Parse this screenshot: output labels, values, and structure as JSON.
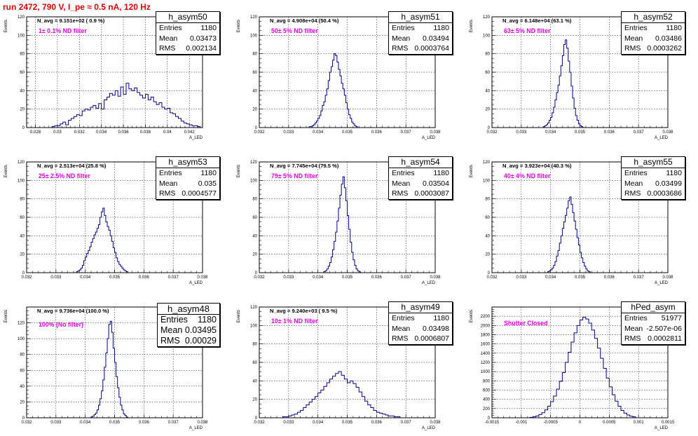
{
  "header": {
    "title": "run 2472,   790 V, I_pe ≈ 0.5 nA, 120 Hz"
  },
  "chart_data": [
    {
      "type": "histogram",
      "name": "h_asym50",
      "n_avg_label": "N_avg = 9.151e+02 ( 0.9 %)",
      "filter_label": "1± 0.1% ND filter",
      "stats": {
        "entries_label": "Entries",
        "entries": "1180",
        "mean_label": "Mean",
        "mean": "0.03473",
        "rms_label": "RMS",
        "rms": "0.002134"
      },
      "xlabel": "A_LED",
      "ylabel": "Events",
      "xlim": [
        0.0272,
        0.0432
      ],
      "ylim": [
        0,
        120
      ],
      "xticks": [
        0.028,
        0.03,
        0.032,
        0.034,
        0.036,
        0.038,
        0.04,
        0.042
      ],
      "xtick_labels": [
        "0.028",
        "0.03",
        "0.032",
        "0.034",
        "0.036",
        "0.038",
        "0.04",
        "0.042"
      ],
      "yticks": [
        0,
        20,
        40,
        60,
        80,
        100,
        120
      ],
      "ytick_labels": [
        "0",
        "20",
        "40",
        "60",
        "80",
        "100",
        "120"
      ],
      "bins": {
        "start": 0.0295,
        "width": 0.00025,
        "counts": [
          1,
          2,
          2,
          4,
          6,
          3,
          8,
          10,
          12,
          14,
          13,
          18,
          20,
          19,
          22,
          24,
          21,
          26,
          20,
          30,
          33,
          37,
          35,
          40,
          34,
          44,
          36,
          48,
          42,
          40,
          43,
          38,
          35,
          32,
          36,
          30,
          33,
          28,
          25,
          27,
          22,
          20,
          21,
          16,
          15,
          12,
          10,
          7,
          5,
          4,
          3,
          2,
          2,
          1
        ]
      }
    },
    {
      "type": "histogram",
      "name": "h_asym51",
      "n_avg_label": "N_avg = 4.908e+04 (50.4 %)",
      "filter_label": "50± 5% ND filter",
      "stats": {
        "entries_label": "Entries",
        "entries": "1180",
        "mean_label": "Mean",
        "mean": "0.03494",
        "rms_label": "RMS",
        "rms": "0.0003764"
      },
      "xlabel": "A_LED",
      "ylabel": "Events",
      "xlim": [
        0.032,
        0.038
      ],
      "ylim": [
        0,
        120
      ],
      "xticks": [
        0.032,
        0.033,
        0.034,
        0.035,
        0.036,
        0.037,
        0.038
      ],
      "xtick_labels": [
        "0.032",
        "0.033",
        "0.034",
        "0.035",
        "0.036",
        "0.037",
        "0.038"
      ],
      "yticks": [
        0,
        20,
        40,
        60,
        80,
        100,
        120
      ],
      "ytick_labels": [
        "0",
        "20",
        "40",
        "60",
        "80",
        "100",
        "120"
      ],
      "bins": {
        "start": 0.0337,
        "width": 5e-05,
        "counts": [
          1,
          1,
          2,
          3,
          5,
          7,
          10,
          13,
          18,
          24,
          28,
          35,
          42,
          51,
          60,
          66,
          73,
          80,
          78,
          71,
          63,
          56,
          48,
          42,
          35,
          27,
          20,
          14,
          10,
          6,
          4,
          2,
          1
        ]
      }
    },
    {
      "type": "histogram",
      "name": "h_asym52",
      "n_avg_label": "N_avg = 6.148e+04 (63.1 %)",
      "filter_label": "63± 5% ND filter",
      "stats": {
        "entries_label": "Entries",
        "entries": "1180",
        "mean_label": "Mean",
        "mean": "0.03486",
        "rms_label": "RMS",
        "rms": "0.0003262"
      },
      "xlabel": "A_LED",
      "ylabel": "Events",
      "xlim": [
        0.032,
        0.038
      ],
      "ylim": [
        0,
        120
      ],
      "xticks": [
        0.032,
        0.033,
        0.034,
        0.035,
        0.036,
        0.037,
        0.038
      ],
      "xtick_labels": [
        "0.032",
        "0.033",
        "0.034",
        "0.035",
        "0.036",
        "0.037",
        "0.038"
      ],
      "yticks": [
        0,
        20,
        40,
        60,
        80,
        100,
        120
      ],
      "ytick_labels": [
        "0",
        "20",
        "40",
        "60",
        "80",
        "100",
        "120"
      ],
      "bins": {
        "start": 0.03375,
        "width": 5e-05,
        "counts": [
          1,
          2,
          3,
          5,
          8,
          11,
          16,
          22,
          30,
          38,
          46,
          56,
          67,
          78,
          90,
          95,
          86,
          72,
          60,
          45,
          32,
          21,
          13,
          8,
          4,
          2,
          1
        ]
      }
    },
    {
      "type": "histogram",
      "name": "h_asym53",
      "n_avg_label": "N_avg = 2.513e+04 (25.8 %)",
      "filter_label": "25± 2.5% ND filter",
      "stats": {
        "entries_label": "Entries",
        "entries": "1180",
        "mean_label": "Mean",
        "mean": "0.035",
        "rms_label": "RMS",
        "rms": "0.0004577"
      },
      "xlabel": "A_LED",
      "ylabel": "Events",
      "xlim": [
        0.032,
        0.038
      ],
      "ylim": [
        0,
        120
      ],
      "xticks": [
        0.032,
        0.033,
        0.034,
        0.035,
        0.036,
        0.037,
        0.038
      ],
      "xtick_labels": [
        "0.032",
        "0.033",
        "0.034",
        "0.035",
        "0.036",
        "0.037",
        "0.038"
      ],
      "yticks": [
        0,
        20,
        40,
        60,
        80,
        100,
        120
      ],
      "ytick_labels": [
        "0",
        "20",
        "40",
        "60",
        "80",
        "100",
        "120"
      ],
      "bins": {
        "start": 0.0337,
        "width": 5e-05,
        "counts": [
          1,
          2,
          3,
          5,
          8,
          13,
          17,
          21,
          24,
          28,
          33,
          37,
          41,
          44,
          48,
          52,
          60,
          66,
          70,
          62,
          55,
          50,
          46,
          40,
          34,
          27,
          22,
          16,
          12,
          9,
          7,
          5,
          3,
          2,
          1
        ]
      }
    },
    {
      "type": "histogram",
      "name": "h_asym54",
      "n_avg_label": "N_avg = 7.745e+04 (79.5 %)",
      "filter_label": "79± 5% ND filter",
      "stats": {
        "entries_label": "Entries",
        "entries": "1180",
        "mean_label": "Mean",
        "mean": "0.03504",
        "rms_label": "RMS",
        "rms": "0.0003087"
      },
      "xlabel": "A_LED",
      "ylabel": "Events",
      "xlim": [
        0.032,
        0.038
      ],
      "ylim": [
        0,
        120
      ],
      "xticks": [
        0.032,
        0.033,
        0.034,
        0.035,
        0.036,
        0.037,
        0.038
      ],
      "xtick_labels": [
        "0.032",
        "0.033",
        "0.034",
        "0.035",
        "0.036",
        "0.037",
        "0.038"
      ],
      "yticks": [
        0,
        20,
        40,
        60,
        80,
        100,
        120
      ],
      "ytick_labels": [
        "0",
        "20",
        "40",
        "60",
        "80",
        "100",
        "120"
      ],
      "bins": {
        "start": 0.0342,
        "width": 5e-05,
        "counts": [
          1,
          2,
          4,
          7,
          11,
          17,
          25,
          34,
          44,
          56,
          70,
          84,
          96,
          104,
          92,
          78,
          62,
          47,
          33,
          22,
          14,
          8,
          4,
          2,
          1
        ]
      }
    },
    {
      "type": "histogram",
      "name": "h_asym55",
      "n_avg_label": "N_avg = 3.923e+04 (40.3 %)",
      "filter_label": "40± 4% ND filter",
      "stats": {
        "entries_label": "Entries",
        "entries": "1180",
        "mean_label": "Mean",
        "mean": "0.03499",
        "rms_label": "RMS",
        "rms": "0.0003686"
      },
      "xlabel": "A_LED",
      "ylabel": "Events",
      "xlim": [
        0.032,
        0.038
      ],
      "ylim": [
        0,
        120
      ],
      "xticks": [
        0.032,
        0.033,
        0.034,
        0.035,
        0.036,
        0.037,
        0.038
      ],
      "xtick_labels": [
        "0.032",
        "0.033",
        "0.034",
        "0.035",
        "0.036",
        "0.037",
        "0.038"
      ],
      "yticks": [
        0,
        20,
        40,
        60,
        80,
        100,
        120
      ],
      "ytick_labels": [
        "0",
        "20",
        "40",
        "60",
        "80",
        "100",
        "120"
      ],
      "bins": {
        "start": 0.0339,
        "width": 5e-05,
        "counts": [
          1,
          2,
          3,
          5,
          8,
          12,
          18,
          24,
          32,
          40,
          48,
          55,
          62,
          70,
          78,
          82,
          74,
          65,
          56,
          47,
          38,
          30,
          22,
          16,
          11,
          7,
          4,
          2,
          1
        ]
      }
    },
    {
      "type": "histogram",
      "name": "h_asym48",
      "n_avg_label": "N_avg = 9.736e+04 (100.0 %)",
      "filter_label": "100% (No filter)",
      "stats": {
        "entries_label": "Entries",
        "entries": "1180",
        "mean_label": "Mean",
        "mean": "0.03495",
        "rms_label": "RMS",
        "rms": "0.00029"
      },
      "xlabel": "A_LED",
      "ylabel": "Events",
      "xlim": [
        0.032,
        0.038
      ],
      "ylim": [
        0,
        140
      ],
      "xticks": [
        0.032,
        0.033,
        0.034,
        0.035,
        0.036,
        0.037,
        0.038
      ],
      "xtick_labels": [
        "0.032",
        "0.033",
        "0.034",
        "0.035",
        "0.036",
        "0.037",
        "0.038"
      ],
      "yticks": [
        0,
        20,
        40,
        60,
        80,
        100,
        120
      ],
      "ytick_labels": [
        "0",
        "20",
        "40",
        "60",
        "80",
        "100",
        "120"
      ],
      "bins": {
        "start": 0.0342,
        "width": 5e-05,
        "counts": [
          1,
          2,
          4,
          6,
          10,
          16,
          24,
          34,
          48,
          64,
          82,
          100,
          118,
          122,
          108,
          88,
          70,
          52,
          38,
          26,
          16,
          10,
          5,
          3,
          1
        ]
      }
    },
    {
      "type": "histogram",
      "name": "h_asym49",
      "n_avg_label": "N_avg = 9.240e+03 ( 9.5 %)",
      "filter_label": "10± 1% ND filter",
      "stats": {
        "entries_label": "Entries",
        "entries": "1180",
        "mean_label": "Mean",
        "mean": "0.03498",
        "rms_label": "RMS",
        "rms": "0.0006807"
      },
      "xlabel": "A_LED",
      "ylabel": "Events",
      "xlim": [
        0.032,
        0.038
      ],
      "ylim": [
        0,
        120
      ],
      "xticks": [
        0.032,
        0.033,
        0.034,
        0.035,
        0.036,
        0.037,
        0.038
      ],
      "xtick_labels": [
        "0.032",
        "0.033",
        "0.034",
        "0.035",
        "0.036",
        "0.037",
        "0.038"
      ],
      "yticks": [
        0,
        20,
        40,
        60,
        80,
        100,
        120
      ],
      "ytick_labels": [
        "0",
        "20",
        "40",
        "60",
        "80",
        "100",
        "120"
      ],
      "bins": {
        "start": 0.0328,
        "width": 0.0001,
        "counts": [
          1,
          1,
          2,
          3,
          4,
          6,
          8,
          11,
          14,
          17,
          20,
          23,
          27,
          30,
          34,
          38,
          42,
          45,
          48,
          50,
          46,
          42,
          38,
          40,
          37,
          33,
          28,
          23,
          18,
          14,
          11,
          8,
          6,
          5,
          4,
          3,
          2,
          2,
          1,
          1
        ]
      }
    },
    {
      "type": "histogram",
      "name": "hPed_asym",
      "n_avg_label": "",
      "filter_label": "Shutter Closed",
      "stats": {
        "entries_label": "Entries",
        "entries": "51977",
        "mean_label": "Mean",
        "mean": "-2.507e-06",
        "rms_label": "RMS",
        "rms": "0.0002811"
      },
      "xlabel": "A_LED",
      "ylabel": "Events",
      "xlim": [
        -0.0015,
        0.0015
      ],
      "ylim": [
        0,
        2400
      ],
      "xticks": [
        -0.0015,
        -0.001,
        -0.0005,
        0,
        0.0005,
        0.001,
        0.0015
      ],
      "xtick_labels": [
        "-0.0015",
        "-0.001",
        "-0.0005",
        "0",
        "0.0005",
        "0.001",
        "0.0015"
      ],
      "yticks": [
        0,
        200,
        400,
        600,
        800,
        1000,
        1200,
        1400,
        1600,
        1800,
        2000,
        2200
      ],
      "ytick_labels": [
        "0",
        "200",
        "400",
        "600",
        "800",
        "1000",
        "1200",
        "1400",
        "1600",
        "1800",
        "2000",
        "2200"
      ],
      "bins": {
        "start": -0.00085,
        "width": 5e-05,
        "counts": [
          10,
          20,
          40,
          70,
          110,
          170,
          250,
          350,
          470,
          620,
          790,
          980,
          1200,
          1420,
          1640,
          1840,
          2000,
          2120,
          2180,
          2140,
          2050,
          1900,
          1720,
          1510,
          1290,
          1070,
          860,
          670,
          500,
          360,
          250,
          160,
          100,
          60,
          35,
          20
        ]
      }
    }
  ]
}
